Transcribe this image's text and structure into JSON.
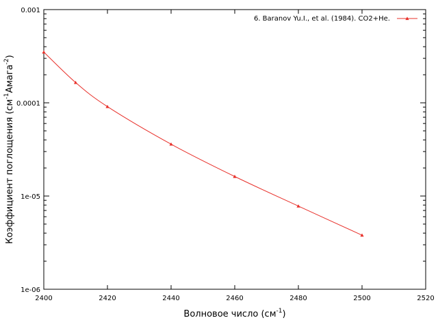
{
  "chart_data": {
    "type": "line",
    "title": "",
    "xlabel": {
      "text": "Волновое число (см",
      "sup": "-1",
      "tail": ")"
    },
    "ylabel": {
      "text": "Коэффициент поглощения (см",
      "sup1": "-1",
      "mid": "Амага",
      "sup2": "-2",
      "tail": ")"
    },
    "xlim": [
      2400,
      2520
    ],
    "ylim": [
      1e-06,
      0.001
    ],
    "yscale": "log",
    "grid": false,
    "legend_position": "top-right",
    "x_ticks": [
      2400,
      2420,
      2440,
      2460,
      2480,
      2500,
      2520
    ],
    "x_tick_labels": [
      "2400",
      "2420",
      "2440",
      "2460",
      "2480",
      "2500",
      "2520"
    ],
    "y_ticks": [
      1e-06,
      1e-05,
      0.0001,
      0.001
    ],
    "y_tick_labels": [
      "1e-06",
      "1e-05",
      "0.0001",
      "0.001"
    ],
    "series": [
      {
        "name": "6. Baranov Yu.I., et al. (1984). CO2+He.",
        "color": "#e8302a",
        "marker": "triangle",
        "x": [
          2400,
          2410,
          2420,
          2440,
          2460,
          2480,
          2500
        ],
        "y": [
          0.00035,
          0.000165,
          9.1e-05,
          3.6e-05,
          1.62e-05,
          7.8e-06,
          3.8e-06
        ]
      }
    ]
  }
}
